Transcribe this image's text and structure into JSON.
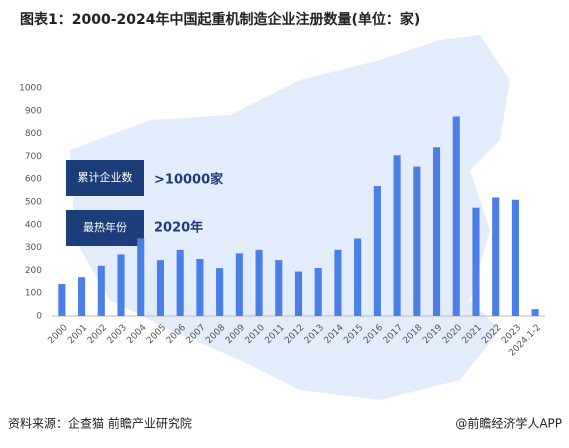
{
  "chart_data": {
    "type": "bar",
    "title": "图表1：2000-2024年中国起重机制造企业注册数量(单位：家)",
    "categories": [
      "2000",
      "2001",
      "2002",
      "2003",
      "2004",
      "2005",
      "2006",
      "2007",
      "2008",
      "2009",
      "2010",
      "2011",
      "2012",
      "2013",
      "2014",
      "2015",
      "2016",
      "2017",
      "2018",
      "2019",
      "2020",
      "2021",
      "2022",
      "2023",
      "2024.1-2"
    ],
    "values": [
      140,
      170,
      220,
      270,
      340,
      245,
      290,
      250,
      210,
      275,
      290,
      245,
      195,
      210,
      290,
      340,
      570,
      705,
      655,
      740,
      875,
      475,
      520,
      510,
      30
    ],
    "color": "#4a7fe8",
    "ylim": [
      0,
      1000
    ],
    "yticks": [
      0,
      100,
      200,
      300,
      400,
      500,
      600,
      700,
      800,
      900,
      1000
    ],
    "annotations": [
      {
        "label": "累计企业数",
        "value": ">10000家"
      },
      {
        "label": "最热年份",
        "value": "2020年"
      }
    ],
    "source": "资料来源：企查猫 前瞻产业研究院",
    "credit": "@前瞻经济学人APP"
  }
}
